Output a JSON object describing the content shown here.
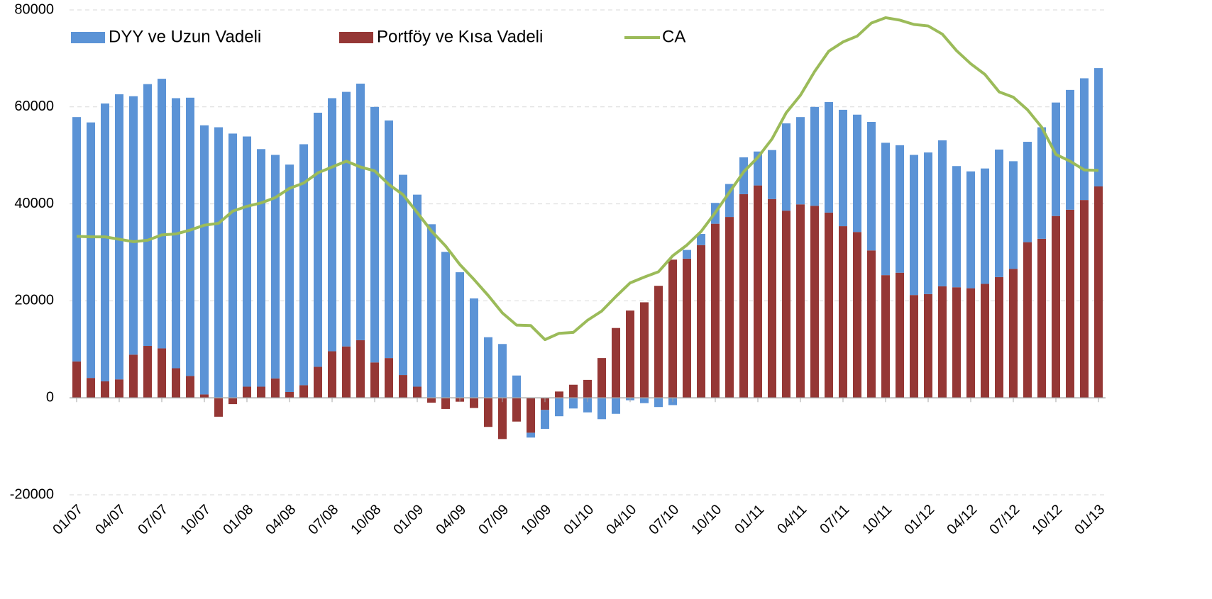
{
  "chart_data": {
    "type": "bar",
    "stacked": true,
    "categories": [
      "01/07",
      null,
      null,
      "04/07",
      null,
      null,
      "07/07",
      null,
      null,
      "10/07",
      null,
      null,
      "01/08",
      null,
      null,
      "04/08",
      null,
      null,
      "07/08",
      null,
      null,
      "10/08",
      null,
      null,
      "01/09",
      null,
      null,
      "04/09",
      null,
      null,
      "07/09",
      null,
      null,
      "10/09",
      null,
      null,
      "01/10",
      null,
      null,
      "04/10",
      null,
      null,
      "07/10",
      null,
      null,
      "10/10",
      null,
      null,
      "01/11",
      null,
      null,
      "04/11",
      null,
      null,
      "07/11",
      null,
      null,
      "10/11",
      null,
      null,
      "01/12",
      null,
      null,
      "04/12",
      null,
      null,
      "07/12",
      null,
      null,
      "10/12",
      null,
      null,
      "01/13"
    ],
    "series": [
      {
        "name": "DYY ve Uzun Vadeli",
        "type": "bar",
        "color": "#5b93d6",
        "values": [
          50400,
          52700,
          57300,
          58800,
          53300,
          54000,
          55600,
          55700,
          57400,
          55500,
          55800,
          54500,
          51600,
          49000,
          46100,
          46900,
          49700,
          52400,
          52200,
          52500,
          52900,
          52700,
          49000,
          41300,
          39600,
          35800,
          30100,
          25900,
          20500,
          12500,
          11100,
          4600,
          -1000,
          -3900,
          -3800,
          -2200,
          -3000,
          -4400,
          -3300,
          -500,
          -1100,
          -1900,
          -1500,
          1800,
          2300,
          4300,
          6800,
          7600,
          7000,
          10100,
          18000,
          18000,
          20400,
          22800,
          24000,
          24200,
          26500,
          27300,
          26300,
          28900,
          29200,
          30100,
          25000,
          24100,
          23800,
          26300,
          22200,
          20700,
          23000,
          23400,
          24700,
          25100,
          24400
        ]
      },
      {
        "name": "Portföy ve Kısa Vadeli",
        "type": "bar",
        "color": "#953735",
        "values": [
          7500,
          4100,
          3400,
          3800,
          8900,
          10700,
          10200,
          6100,
          4500,
          700,
          -3900,
          -1300,
          2300,
          2300,
          4000,
          1200,
          2600,
          6400,
          9600,
          10600,
          11900,
          7300,
          8200,
          4700,
          2300,
          -1000,
          -2300,
          -800,
          -2100,
          -6000,
          -8500,
          -4900,
          -7200,
          -2500,
          1300,
          2700,
          3700,
          8200,
          14400,
          18000,
          19700,
          23100,
          28500,
          28700,
          31500,
          35900,
          37300,
          42000,
          43800,
          41000,
          38600,
          39900,
          39600,
          38200,
          35400,
          34200,
          30400,
          25300,
          25800,
          21200,
          21400,
          23000,
          22800,
          22600,
          23500,
          24900,
          26600,
          32100,
          32800,
          37500,
          38800,
          40800,
          43600
        ]
      },
      {
        "name": "CA",
        "type": "line",
        "color": "#9bbb59",
        "values": [
          33300,
          33200,
          33200,
          32700,
          32200,
          32500,
          33600,
          33800,
          34600,
          35600,
          36000,
          38500,
          39500,
          40200,
          41300,
          43200,
          44300,
          46400,
          47600,
          48800,
          47600,
          46800,
          44000,
          41900,
          38200,
          34400,
          31300,
          27500,
          24400,
          21100,
          17500,
          15000,
          14900,
          12000,
          13300,
          13500,
          16000,
          17900,
          20900,
          23700,
          24900,
          26000,
          29300,
          31500,
          34300,
          38200,
          42400,
          46600,
          49600,
          53400,
          58800,
          62400,
          67300,
          71500,
          73400,
          74600,
          77300,
          78400,
          77900,
          77000,
          76700,
          75000,
          71600,
          68900,
          66700,
          63100,
          62000,
          59400,
          55800,
          50200,
          48800,
          47000,
          46900
        ]
      }
    ],
    "ylim": [
      -20000,
      80000
    ],
    "yticks": [
      -20000,
      0,
      20000,
      40000,
      60000,
      80000
    ],
    "grid": true,
    "legend": "top"
  }
}
